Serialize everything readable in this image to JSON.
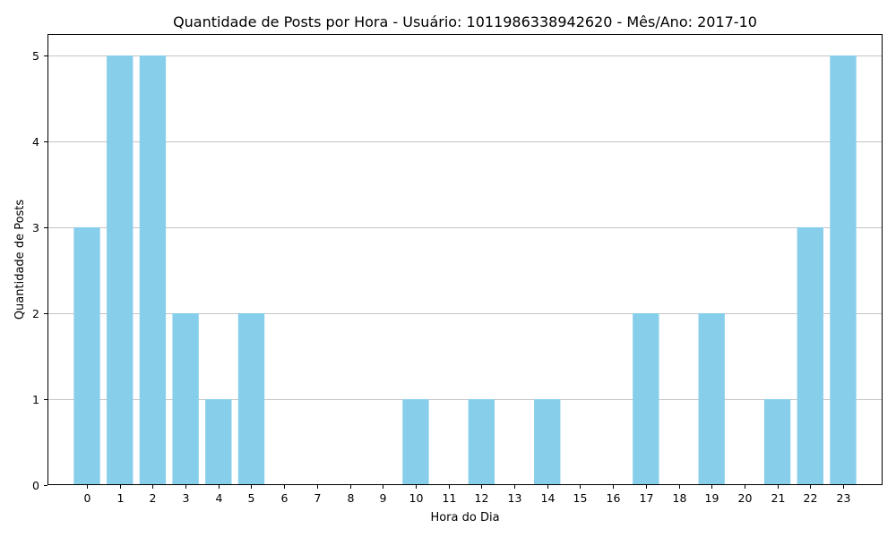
{
  "chart_data": {
    "type": "bar",
    "title": "Quantidade de Posts por Hora - Usuário: 1011986338942620 - Mês/Ano: 2017-10",
    "xlabel": "Hora do Dia",
    "ylabel": "Quantidade de Posts",
    "categories": [
      "0",
      "1",
      "2",
      "3",
      "4",
      "5",
      "6",
      "7",
      "8",
      "9",
      "10",
      "11",
      "12",
      "13",
      "14",
      "15",
      "16",
      "17",
      "18",
      "19",
      "20",
      "21",
      "22",
      "23"
    ],
    "values": [
      3,
      5,
      5,
      2,
      1,
      2,
      0,
      0,
      0,
      0,
      1,
      0,
      1,
      0,
      1,
      0,
      0,
      2,
      0,
      2,
      0,
      1,
      3,
      5
    ],
    "ylim": [
      0,
      5.25
    ],
    "yticks": [
      0,
      1,
      2,
      3,
      4,
      5
    ],
    "grid": "y-axis",
    "bar_color": "#87ceeb",
    "grid_color": "#b0b0b0"
  }
}
